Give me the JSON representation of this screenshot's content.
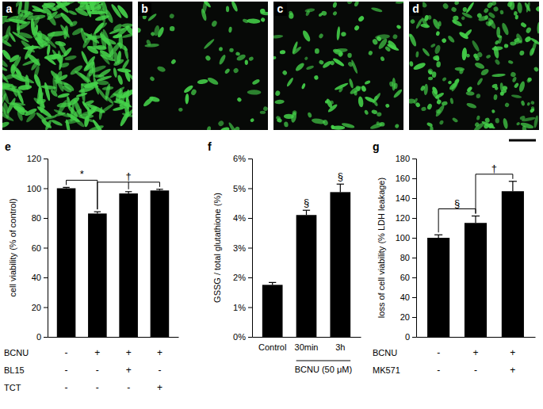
{
  "images": [
    {
      "label": "a"
    },
    {
      "label": "b"
    },
    {
      "label": "c"
    },
    {
      "label": "d"
    }
  ],
  "chart_data": [
    {
      "type": "bar",
      "panel": "e",
      "categories": [
        null,
        null,
        null,
        null
      ],
      "values": [
        100,
        83,
        96.5,
        98.5
      ],
      "errors": [
        0.6,
        1.2,
        1.2,
        0.8
      ],
      "color": "#000000",
      "ylim": [
        0,
        120
      ],
      "yticks": [
        0,
        20,
        40,
        60,
        80,
        100,
        120
      ],
      "ylabel": "cell viability (% of control)",
      "annotations": [
        {
          "text": "*",
          "bars": [
            0,
            1
          ]
        },
        {
          "text": "†",
          "bars": [
            1,
            2,
            3
          ]
        }
      ],
      "treatments": [
        {
          "label": "BCNU",
          "marks": [
            "-",
            "+",
            "+",
            "+"
          ]
        },
        {
          "label": "BL15",
          "marks": [
            "-",
            "-",
            "+",
            "-"
          ]
        },
        {
          "label": "TCT",
          "marks": [
            "-",
            "-",
            "-",
            "+"
          ]
        }
      ]
    },
    {
      "type": "bar",
      "panel": "f",
      "categories": [
        "Control",
        "30min",
        "3h"
      ],
      "values": [
        1.75,
        4.1,
        4.87
      ],
      "errors": [
        0.08,
        0.16,
        0.27
      ],
      "color": "#000000",
      "ylim": [
        0,
        6
      ],
      "yticks": [
        {
          "value": 0,
          "label": "0%"
        },
        {
          "value": 1,
          "label": "1%"
        },
        {
          "value": 2,
          "label": "2%"
        },
        {
          "value": 3,
          "label": "3%"
        },
        {
          "value": 4,
          "label": "4%"
        },
        {
          "value": 5,
          "label": "5%"
        },
        {
          "value": 6,
          "label": "6%"
        }
      ],
      "ylabel": "GSSG / total glutathione (%)",
      "annotations": [
        {
          "text": "§",
          "bars": [
            1
          ]
        },
        {
          "text": "§",
          "bars": [
            2
          ]
        }
      ],
      "groups": [
        {
          "label": "BCNU (50 μM)",
          "bars": [
            1,
            2
          ]
        }
      ]
    },
    {
      "type": "bar",
      "panel": "g",
      "categories": [
        null,
        null,
        null
      ],
      "values": [
        100,
        115,
        147
      ],
      "errors": [
        3,
        7,
        10
      ],
      "color": "#000000",
      "ylim": [
        0,
        180
      ],
      "yticks": [
        0,
        20,
        40,
        60,
        80,
        100,
        120,
        140,
        160,
        180
      ],
      "ylabel": "loss of cell viability (% LDH leakage)",
      "annotations": [
        {
          "text": "§",
          "bars": [
            0,
            1
          ]
        },
        {
          "text": "†",
          "bars": [
            1,
            2
          ]
        }
      ],
      "treatments": [
        {
          "label": "BCNU",
          "marks": [
            "-",
            "+",
            "+"
          ]
        },
        {
          "label": "MK571",
          "marks": [
            "-",
            "-",
            "+"
          ]
        }
      ]
    }
  ]
}
